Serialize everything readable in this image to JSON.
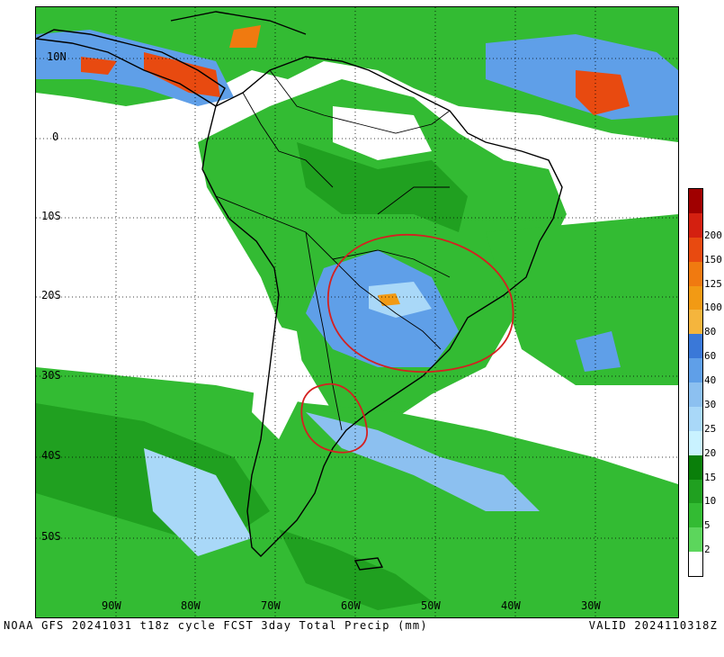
{
  "map": {
    "latitude_labels": [
      "10N",
      "0",
      "10S",
      "20S",
      "30S",
      "40S",
      "50S"
    ],
    "longitude_labels": [
      "90W",
      "80W",
      "70W",
      "60W",
      "50W",
      "40W",
      "30W"
    ],
    "highlight_circle_color": "#d42020",
    "highlighted_regions": 2
  },
  "colorbar": {
    "levels": [
      {
        "label": "",
        "color": "#ffffff"
      },
      {
        "label": "2",
        "color": "#5cd65c"
      },
      {
        "label": "5",
        "color": "#33bb33"
      },
      {
        "label": "10",
        "color": "#20a020"
      },
      {
        "label": "15",
        "color": "#0a7f0a"
      },
      {
        "label": "20",
        "color": "#c9f2ff"
      },
      {
        "label": "25",
        "color": "#a9d8f8"
      },
      {
        "label": "30",
        "color": "#8cc0f0"
      },
      {
        "label": "40",
        "color": "#5f9fe8"
      },
      {
        "label": "60",
        "color": "#3a78d8"
      },
      {
        "label": "80",
        "color": "#f5b53d"
      },
      {
        "label": "100",
        "color": "#f29a14"
      },
      {
        "label": "125",
        "color": "#f07a10"
      },
      {
        "label": "150",
        "color": "#e84a10"
      },
      {
        "label": "200",
        "color": "#d42010"
      },
      {
        "label": "",
        "color": "#a00000"
      }
    ]
  },
  "footer": {
    "left": "NOAA GFS 20241031 t18z cycle FCST 3day Total Precip (mm)",
    "right": "VALID 2024110318Z"
  }
}
